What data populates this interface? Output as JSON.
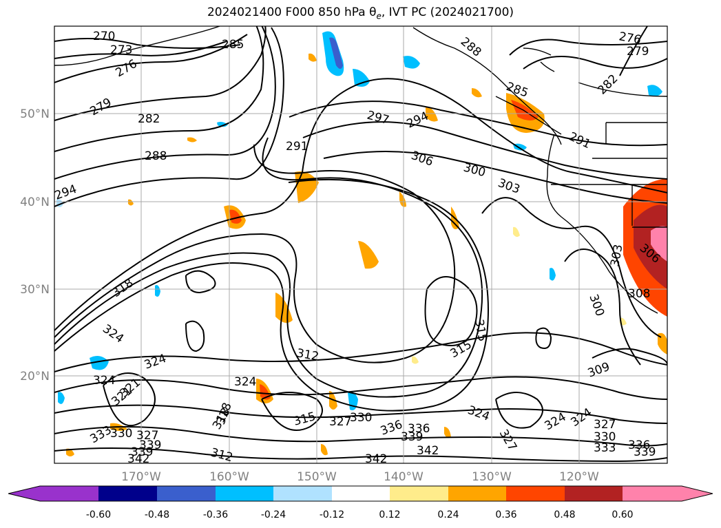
{
  "title": "2024021400 F000 850 hPa θe, IVT PC (2024021700)",
  "lat_ticks": [
    "50°N",
    "40°N",
    "30°N",
    "20°N"
  ],
  "lon_ticks": [
    "170°W",
    "160°W",
    "150°W",
    "140°W",
    "130°W",
    "120°W"
  ],
  "colorbar": {
    "labels": [
      "-0.60",
      "-0.48",
      "-0.36",
      "-0.24",
      "-0.12",
      "0.12",
      "0.24",
      "0.36",
      "0.48",
      "0.60"
    ],
    "colors": [
      "#9932cc",
      "#00008b",
      "#3a5fcd",
      "#00bfff",
      "#b0e2ff",
      "#ffffff",
      "#ffec8b",
      "#ffa500",
      "#ff4500",
      "#b22222",
      "#ff82ab"
    ]
  },
  "contour_labels": [
    "270",
    "273",
    "276",
    "279",
    "282",
    "288",
    "294",
    "285",
    "291",
    "297",
    "294",
    "306",
    "300",
    "303",
    "288",
    "285",
    "282",
    "276",
    "279",
    "291",
    "318",
    "324",
    "324",
    "324",
    "321",
    "312",
    "315",
    "324",
    "318",
    "315",
    "327",
    "330",
    "327",
    "336",
    "339",
    "342",
    "330",
    "339",
    "336",
    "342",
    "333",
    "339",
    "342",
    "327",
    "324",
    "324",
    "324",
    "327",
    "330",
    "333",
    "336",
    "339",
    "309",
    "300",
    "303",
    "306",
    "308",
    "315",
    "318",
    "312",
    "321"
  ]
}
